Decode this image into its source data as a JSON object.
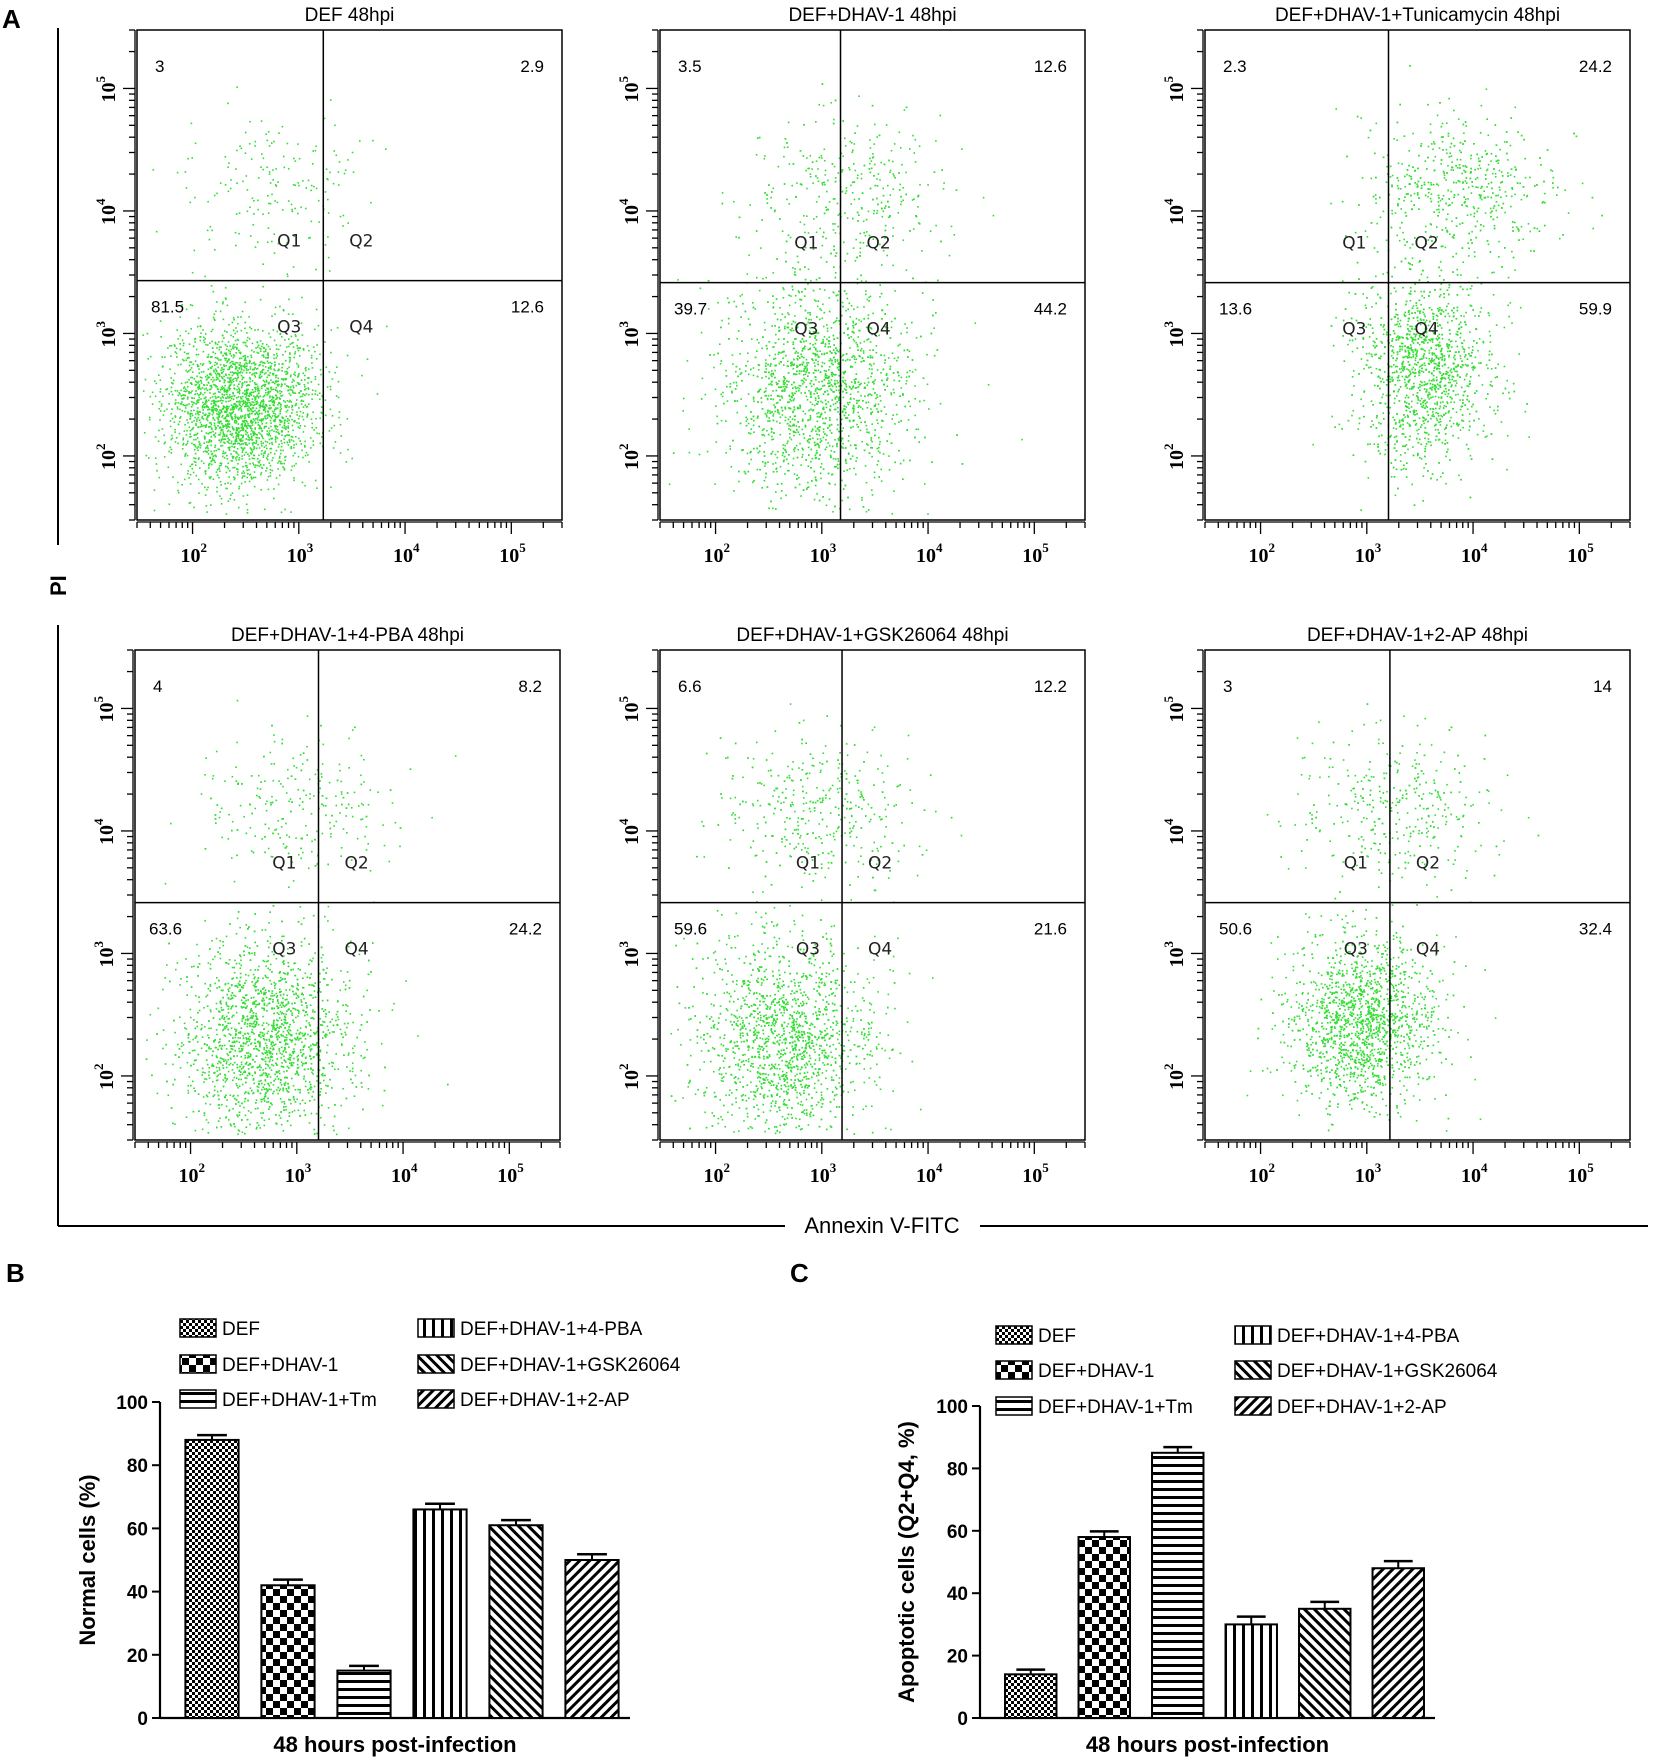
{
  "panel_letters": {
    "a": "A",
    "b": "B",
    "c": "C"
  },
  "flow_axes": {
    "y_title": "PI",
    "x_title": "Annexin V-FITC"
  },
  "colors": {
    "dots": "#33dd33",
    "axis": "#000000"
  },
  "chart_data": [
    {
      "id": "flow",
      "type": "scatter",
      "description": "Annexin V-FITC / PI flow cytometry quadrant plots, 48 hpi",
      "x_scale": "log",
      "y_scale": "log",
      "x_range": [
        30,
        300000
      ],
      "y_range": [
        30,
        300000
      ],
      "x_ticks": [
        {
          "base": "10",
          "exp": "2"
        },
        {
          "base": "10",
          "exp": "3"
        },
        {
          "base": "10",
          "exp": "4"
        },
        {
          "base": "10",
          "exp": "5"
        }
      ],
      "y_ticks": [
        {
          "base": "10",
          "exp": "2"
        },
        {
          "base": "10",
          "exp": "3"
        },
        {
          "base": "10",
          "exp": "4"
        },
        {
          "base": "10",
          "exp": "5"
        }
      ],
      "quadrant_labels": [
        "Q1",
        "Q2",
        "Q3",
        "Q4"
      ],
      "plots": [
        {
          "title": "DEF  48hpi",
          "Q1": "3",
          "Q2": "2.9",
          "Q3": "81.5",
          "Q4": "12.6",
          "gate_x": 1700,
          "gate_y": 2700,
          "center": [
            2.45,
            2.4
          ],
          "spread": [
            0.36,
            0.33
          ]
        },
        {
          "title": "DEF+DHAV-1  48hpi",
          "Q1": "3.5",
          "Q2": "12.6",
          "Q3": "39.7",
          "Q4": "44.2",
          "gate_x": 1500,
          "gate_y": 2600,
          "center": [
            2.95,
            2.55
          ],
          "spread": [
            0.45,
            0.45
          ]
        },
        {
          "title": "DEF+DHAV-1+Tunicamycin  48hpi",
          "Q1": "2.3",
          "Q2": "24.2",
          "Q3": "13.6",
          "Q4": "59.9",
          "gate_x": 1600,
          "gate_y": 2600,
          "center": [
            3.55,
            2.7
          ],
          "spread": [
            0.32,
            0.4
          ]
        },
        {
          "title": "DEF+DHAV-1+4-PBA  48hpi",
          "Q1": "4",
          "Q2": "8.2",
          "Q3": "63.6",
          "Q4": "24.2",
          "gate_x": 1600,
          "gate_y": 2600,
          "center": [
            2.7,
            2.3
          ],
          "spread": [
            0.4,
            0.4
          ]
        },
        {
          "title": "DEF+DHAV-1+GSK26064  48hpi",
          "Q1": "6.6",
          "Q2": "12.2",
          "Q3": "59.6",
          "Q4": "21.6",
          "gate_x": 1550,
          "gate_y": 2600,
          "center": [
            2.65,
            2.3
          ],
          "spread": [
            0.42,
            0.42
          ]
        },
        {
          "title": "DEF+DHAV-1+2-AP  48hpi",
          "Q1": "3",
          "Q2": "14",
          "Q3": "50.6",
          "Q4": "32.4",
          "gate_x": 1650,
          "gate_y": 2600,
          "center": [
            2.95,
            2.45
          ],
          "spread": [
            0.35,
            0.35
          ]
        }
      ]
    },
    {
      "id": "B",
      "type": "bar",
      "title": "",
      "xlabel": "48 hours post-infection",
      "ylabel": "Normal cells (%)",
      "ylim": [
        0,
        100
      ],
      "yticks": [
        0,
        20,
        40,
        60,
        80,
        100
      ],
      "categories": [
        "DEF",
        "DEF+DHAV-1",
        "DEF+DHAV-1+Tm",
        "DEF+DHAV-1+4-PBA",
        "DEF+DHAV-1+GSK26064",
        "DEF+DHAV-1+2-AP"
      ],
      "values": [
        88,
        42,
        15,
        66,
        61,
        50
      ],
      "errors": [
        1.5,
        1.8,
        1.5,
        1.8,
        1.6,
        1.8
      ],
      "legend": [
        "DEF",
        "DEF+DHAV-1",
        "DEF+DHAV-1+Tm",
        "DEF+DHAV-1+4-PBA",
        "DEF+DHAV-1+GSK26064",
        "DEF+DHAV-1+2-AP"
      ]
    },
    {
      "id": "C",
      "type": "bar",
      "title": "",
      "xlabel": "48 hours post-infection",
      "ylabel": "Apoptotic cells (Q2+Q4, %)",
      "ylim": [
        0,
        100
      ],
      "yticks": [
        0,
        20,
        40,
        60,
        80,
        100
      ],
      "categories": [
        "DEF",
        "DEF+DHAV-1",
        "DEF+DHAV-1+Tm",
        "DEF+DHAV-1+4-PBA",
        "DEF+DHAV-1+GSK26064",
        "DEF+DHAV-1+2-AP"
      ],
      "values": [
        14,
        58,
        85,
        30,
        35,
        48
      ],
      "errors": [
        1.5,
        1.8,
        1.8,
        2.5,
        2.2,
        2.3
      ],
      "legend": [
        "DEF",
        "DEF+DHAV-1",
        "DEF+DHAV-1+Tm",
        "DEF+DHAV-1+4-PBA",
        "DEF+DHAV-1+GSK26064",
        "DEF+DHAV-1+2-AP"
      ]
    }
  ]
}
